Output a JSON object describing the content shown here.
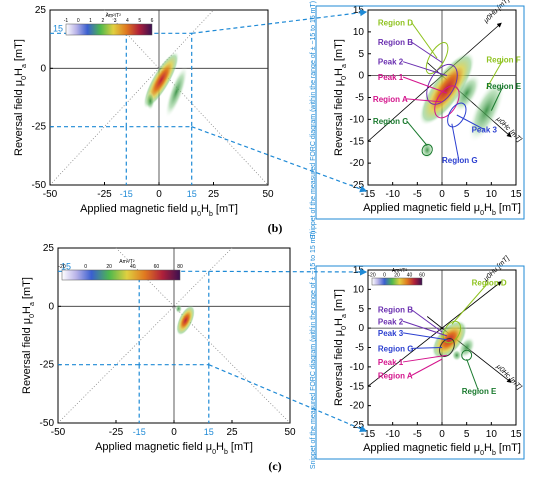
{
  "chart_data": [
    {
      "panel": "(b)",
      "type": "heatmap",
      "title": "",
      "xlabel": "Applied magnetic field μ0Hb [mT]",
      "ylabel": "Reversal field μ0Ha [mT]",
      "xlim": [
        -50,
        50
      ],
      "ylim": [
        -50,
        25
      ],
      "xticks": [
        "-50",
        "-25",
        "0",
        "25",
        "50"
      ],
      "yticks": [
        "25",
        "0",
        "-25",
        "-50"
      ],
      "blue_ticks": {
        "x": [
          "-15",
          "15"
        ],
        "y": [
          "15"
        ]
      },
      "colorbar": {
        "label": "Am²/T²",
        "ticks": [
          "-1",
          "0",
          "1",
          "2",
          "3",
          "4",
          "5",
          "6"
        ]
      },
      "grid": false,
      "zoom": {
        "xlim": [
          -15,
          15
        ],
        "ylim": [
          -25,
          15
        ],
        "xticks": [
          "-15",
          "-10",
          "-5",
          "0",
          "5",
          "10",
          "15"
        ],
        "yticks": [
          "15",
          "10",
          "5",
          "0",
          "-5",
          "-10",
          "-15",
          "-20",
          "-25"
        ],
        "xlabel": "Applied magnetic field μ0Hb [mT]",
        "ylabel": "Reversal field μ0Ha [mT]",
        "snippet_note": "Snippet of the measured FORC diagram (within the range of  ± −15 to 15 mT)",
        "axis_labels": [
          "μ0Hu [mT]",
          "μ0Hc [mT]"
        ],
        "annotations": [
          {
            "text": "Region D",
            "color": "#8fc31f"
          },
          {
            "text": "Region B",
            "color": "#6a2fb0"
          },
          {
            "text": "Peak 2",
            "color": "#6a2fb0"
          },
          {
            "text": "Peak 1",
            "color": "#d4148c"
          },
          {
            "text": "Region A",
            "color": "#d4148c"
          },
          {
            "text": "Region C",
            "color": "#1a7a2e"
          },
          {
            "text": "Region F",
            "color": "#8fc31f"
          },
          {
            "text": "Region E",
            "color": "#1a7a2e"
          },
          {
            "text": "Peak 3",
            "color": "#2b3fd0"
          },
          {
            "text": "Region G",
            "color": "#2b3fd0"
          }
        ]
      }
    },
    {
      "panel": "(c)",
      "type": "heatmap",
      "title": "",
      "xlabel": "Applied magnetic field μ0Hb [mT]",
      "ylabel": "Reversal field μ0Ha [mT]",
      "xlim": [
        -50,
        50
      ],
      "ylim": [
        -50,
        25
      ],
      "xticks": [
        "-50",
        "-25",
        "0",
        "25",
        "50"
      ],
      "yticks": [
        "25",
        "0",
        "-25",
        "-50"
      ],
      "blue_ticks": {
        "x": [
          "-15",
          "15"
        ],
        "y": [
          "15"
        ]
      },
      "colorbar": {
        "label": "Am²/T²",
        "ticks": [
          "-20",
          "0",
          "20",
          "40",
          "60",
          "80"
        ]
      },
      "grid": false,
      "zoom": {
        "xlim": [
          -15,
          15
        ],
        "ylim": [
          -25,
          15
        ],
        "xticks": [
          "-15",
          "-10",
          "-5",
          "0",
          "5",
          "10",
          "15"
        ],
        "yticks": [
          "15",
          "10",
          "5",
          "0",
          "-5",
          "-10",
          "-15",
          "-20",
          "-25"
        ],
        "xlabel": "Applied magnetic field μ0Hb [mT]",
        "ylabel": "Reversal field μ0Ha [mT]",
        "snippet_note": "Snippet of the measured FORC diagram (within the range of  ± −15 to 15 mT)",
        "axis_labels": [
          "μ0Hu [mT]",
          "μ0Hc [mT]"
        ],
        "colorbar": {
          "label": "Am²/T²",
          "ticks": [
            "-20",
            "0",
            "20",
            "40",
            "60"
          ]
        },
        "annotations": [
          {
            "text": "Region D",
            "color": "#8fc31f"
          },
          {
            "text": "Region B",
            "color": "#6a2fb0"
          },
          {
            "text": "Peak 2",
            "color": "#6a2fb0"
          },
          {
            "text": "Peak 3",
            "color": "#2b3fd0"
          },
          {
            "text": "Region G",
            "color": "#2b3fd0"
          },
          {
            "text": "Peak 1",
            "color": "#d4148c"
          },
          {
            "text": "Region A",
            "color": "#d4148c"
          },
          {
            "text": "Region E",
            "color": "#1a7a2e"
          }
        ]
      }
    }
  ],
  "labels": {
    "panel_b": "(b)",
    "panel_c": "(c)"
  },
  "colors": {
    "accent": "#1f8ad6",
    "axis": "#000000"
  }
}
